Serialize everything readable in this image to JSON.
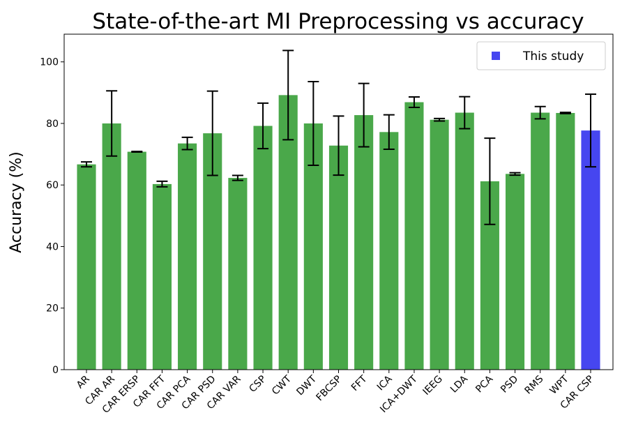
{
  "chart_data": {
    "type": "bar",
    "title": "State-of-the-art MI Preprocessing vs accuracy",
    "xlabel": "",
    "ylabel": "Accuracy (%)",
    "ylim": [
      0,
      109
    ],
    "yticks": [
      0,
      20,
      40,
      60,
      80,
      100
    ],
    "grid": false,
    "legend_position": "top-right",
    "legend": [
      {
        "label": "This study",
        "color": "#4646f0"
      }
    ],
    "colors": {
      "default": "#4aa84a",
      "highlight": "#4646f0",
      "errorbar": "#000000"
    },
    "categories": [
      "AR",
      "CAR AR",
      "CAR ERSP",
      "CAR FFT",
      "CAR PCA",
      "CAR PSD",
      "CAR VAR",
      "CSP",
      "CWT",
      "DWT",
      "FBCSP",
      "FFT",
      "ICA",
      "ICA+DWT",
      "IEEG",
      "LDA",
      "PCA",
      "PSD",
      "RMS",
      "WPT",
      "CAR CSP"
    ],
    "values": [
      66.7,
      80.0,
      70.8,
      60.3,
      73.5,
      76.8,
      62.3,
      79.2,
      89.2,
      80.0,
      72.8,
      82.7,
      77.2,
      86.9,
      81.2,
      83.5,
      61.2,
      63.6,
      83.5,
      83.4,
      77.7
    ],
    "errors": [
      0.8,
      10.6,
      0.1,
      0.9,
      2.0,
      13.7,
      0.8,
      7.4,
      14.5,
      13.6,
      9.6,
      10.3,
      5.6,
      1.7,
      0.4,
      5.2,
      14.0,
      0.4,
      2.0,
      0.2,
      11.8
    ],
    "highlight_index": 20
  }
}
